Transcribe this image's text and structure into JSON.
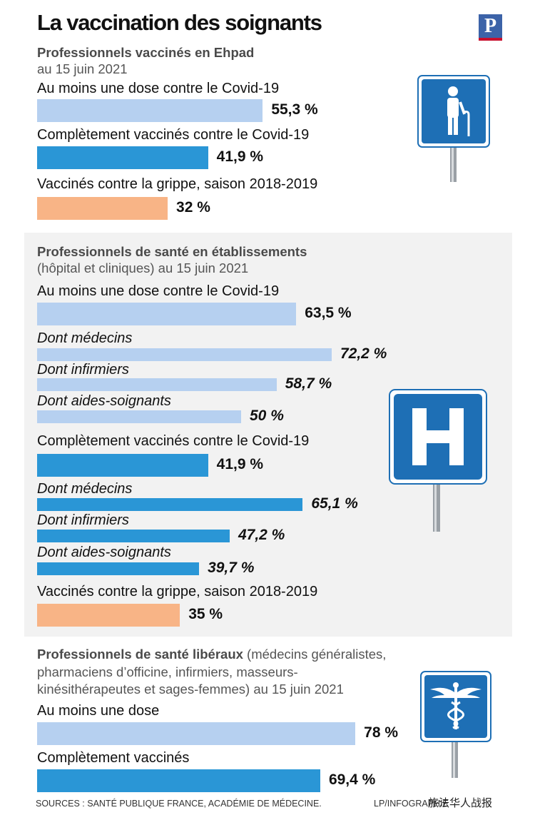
{
  "title": "La vaccination des soignants",
  "logo": "P",
  "colors": {
    "light": "#b6d0f0",
    "dark": "#2a96d6",
    "orange": "#f8b486",
    "sign": "#1e6fb5"
  },
  "section1": {
    "title": "Professionnels vaccinés en Ehpad",
    "subtitle": "au 15 juin 2021"
  },
  "section2": {
    "title": "Professionnels de santé en établissements",
    "subtitle": "(hôpital et cliniques) au 15 juin 2021"
  },
  "section3": {
    "title_bold": "Professionnels de santé libéraux",
    "title_rest": " (médecins généralistes,",
    "line2": "pharmaciens d’officine, infirmiers, masseurs-",
    "line3": "kinésithérapeutes et sages-femmes) au 15 juin 2021"
  },
  "icons": [
    "elderly-person-sign-icon",
    "hospital-sign-icon",
    "caduceus-sign-icon"
  ],
  "chart_data": {
    "type": "bar",
    "unit": "%",
    "groups": [
      {
        "title": "Professionnels vaccinés en Ehpad",
        "items": [
          {
            "label": "Au moins une dose contre le Covid-19",
            "value": 55.3,
            "display": "55,3 %",
            "color": "light",
            "sub": false
          },
          {
            "label": "Complètement vaccinés contre le Covid-19",
            "value": 41.9,
            "display": "41,9 %",
            "color": "dark",
            "sub": false
          },
          {
            "label": "Vaccinés contre la grippe, saison 2018-2019",
            "value": 32,
            "display": "32 %",
            "color": "orange",
            "sub": false
          }
        ]
      },
      {
        "title": "Professionnels de santé en établissements",
        "items": [
          {
            "label": "Au moins une dose contre le Covid-19",
            "value": 63.5,
            "display": "63,5 %",
            "color": "light",
            "sub": false
          },
          {
            "label": "Dont médecins",
            "value": 72.2,
            "display": "72,2 %",
            "color": "light",
            "sub": true
          },
          {
            "label": "Dont infirmiers",
            "value": 58.7,
            "display": "58,7 %",
            "color": "light",
            "sub": true
          },
          {
            "label": "Dont aides-soignants",
            "value": 50,
            "display": "50 %",
            "color": "light",
            "sub": true
          },
          {
            "label": "Complètement vaccinés contre le Covid-19",
            "value": 41.9,
            "display": "41,9 %",
            "color": "dark",
            "sub": false
          },
          {
            "label": "Dont médecins",
            "value": 65.1,
            "display": "65,1 %",
            "color": "dark",
            "sub": true
          },
          {
            "label": "Dont infirmiers",
            "value": 47.2,
            "display": "47,2 %",
            "color": "dark",
            "sub": true
          },
          {
            "label": "Dont aides-soignants",
            "value": 39.7,
            "display": "39,7 %",
            "color": "dark",
            "sub": true
          },
          {
            "label": "Vaccinés contre la grippe, saison 2018-2019",
            "value": 35,
            "display": "35 %",
            "color": "orange",
            "sub": false
          }
        ]
      },
      {
        "title": "Professionnels de santé libéraux",
        "items": [
          {
            "label": "Au moins une dose",
            "value": 78,
            "display": "78 %",
            "color": "light",
            "sub": false
          },
          {
            "label": "Complètement vaccinés",
            "value": 69.4,
            "display": "69,4 %",
            "color": "dark",
            "sub": false
          }
        ]
      }
    ]
  },
  "footer": {
    "source": "SOURCES : SANTÉ PUBLIQUE FRANCE, ACADÉMIE DE MÉDECINE.",
    "credit": "LP/INFOGRAPHIE",
    "watermark": "旅法华人战报"
  }
}
